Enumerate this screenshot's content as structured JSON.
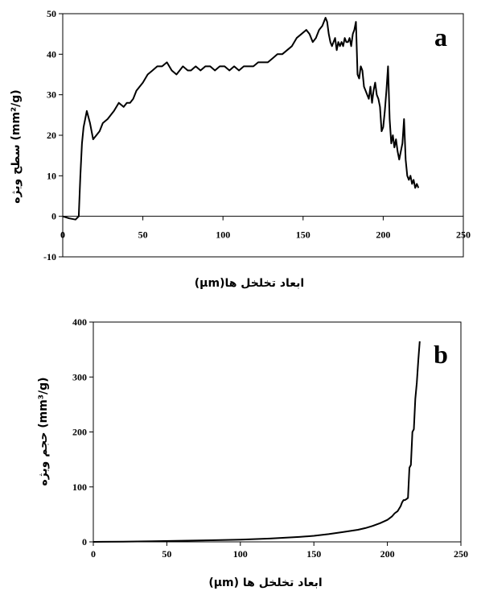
{
  "chart_data": [
    {
      "type": "line",
      "panel_label": "a",
      "xlabel": "ابعاد تخلخل ها(μm)",
      "ylabel": "(mm²/g) سطح ویژه",
      "xlim": [
        0,
        250
      ],
      "ylim": [
        -10,
        50
      ],
      "xticks": [
        "0",
        "50",
        "100",
        "150",
        "200",
        "250"
      ],
      "yticks": [
        "-10",
        "0",
        "10",
        "20",
        "30",
        "40",
        "50"
      ],
      "grid": false,
      "series": [
        {
          "x": [
            0,
            4,
            8,
            10,
            11,
            12,
            13,
            14,
            15,
            17,
            19,
            21,
            23,
            25,
            28,
            32,
            35,
            38,
            40,
            42,
            44,
            46,
            48,
            50,
            53,
            56,
            59,
            62,
            65,
            68,
            71,
            73,
            75,
            78,
            80,
            83,
            86,
            89,
            92,
            95,
            98,
            101,
            104,
            107,
            110,
            113,
            116,
            119,
            122,
            125,
            128,
            131,
            134,
            137,
            140,
            143,
            146,
            149,
            152,
            154,
            156,
            158,
            160,
            162,
            164,
            165,
            166,
            167,
            168,
            169,
            170,
            171,
            172,
            173,
            174,
            175,
            176,
            177,
            178,
            179,
            180,
            181,
            182,
            183,
            184,
            185,
            186,
            187,
            188,
            189,
            190,
            191,
            192,
            193,
            194,
            195,
            196,
            197,
            198,
            199,
            200,
            201,
            202,
            203,
            204,
            205,
            206,
            207,
            208,
            209,
            210,
            211,
            212,
            213,
            214,
            215,
            216,
            217,
            218,
            219,
            220,
            221,
            222
          ],
          "y": [
            0,
            -0.5,
            -0.8,
            0,
            10,
            18,
            22,
            24,
            26,
            23,
            19,
            20,
            21,
            23,
            24,
            26,
            28,
            27,
            28,
            28,
            29,
            31,
            32,
            33,
            35,
            36,
            37,
            37,
            38,
            36,
            35,
            36,
            37,
            36,
            36,
            37,
            36,
            37,
            37,
            36,
            37,
            37,
            36,
            37,
            36,
            37,
            37,
            37,
            38,
            38,
            38,
            39,
            40,
            40,
            41,
            42,
            44,
            45,
            46,
            45,
            43,
            44,
            46,
            47,
            49,
            48,
            45,
            43,
            42,
            43,
            44,
            41,
            43,
            42,
            43,
            42,
            44,
            43,
            43,
            44,
            42,
            45,
            46,
            48,
            35,
            34,
            37,
            36,
            32,
            31,
            30,
            29,
            32,
            28,
            31,
            33,
            30,
            29,
            27,
            21,
            22,
            26,
            31,
            37,
            24,
            18,
            20,
            17,
            19,
            16,
            14,
            16,
            18,
            24,
            14,
            10,
            9,
            10,
            8,
            9,
            7,
            8,
            7
          ]
        }
      ]
    },
    {
      "type": "line",
      "panel_label": "b",
      "xlabel": "ابعاد تخلخل ها (μm)",
      "ylabel": "(mm³/g) حجم ویژه",
      "xlim": [
        0,
        250
      ],
      "ylim": [
        0,
        400
      ],
      "xticks": [
        "0",
        "50",
        "100",
        "150",
        "200",
        "250"
      ],
      "yticks": [
        "0",
        "100",
        "200",
        "300",
        "400"
      ],
      "grid": false,
      "series": [
        {
          "x": [
            0,
            20,
            40,
            60,
            80,
            100,
            120,
            140,
            150,
            160,
            170,
            180,
            185,
            190,
            195,
            200,
            203,
            205,
            207,
            209,
            210,
            211,
            212,
            213,
            214,
            215,
            216,
            217,
            218,
            219,
            220,
            221,
            222
          ],
          "y": [
            0,
            0.5,
            1,
            2,
            3,
            4,
            6,
            9,
            11,
            14,
            18,
            22,
            25,
            29,
            34,
            40,
            46,
            52,
            56,
            65,
            72,
            76,
            76,
            78,
            80,
            135,
            140,
            200,
            205,
            260,
            290,
            330,
            365
          ]
        }
      ]
    }
  ]
}
